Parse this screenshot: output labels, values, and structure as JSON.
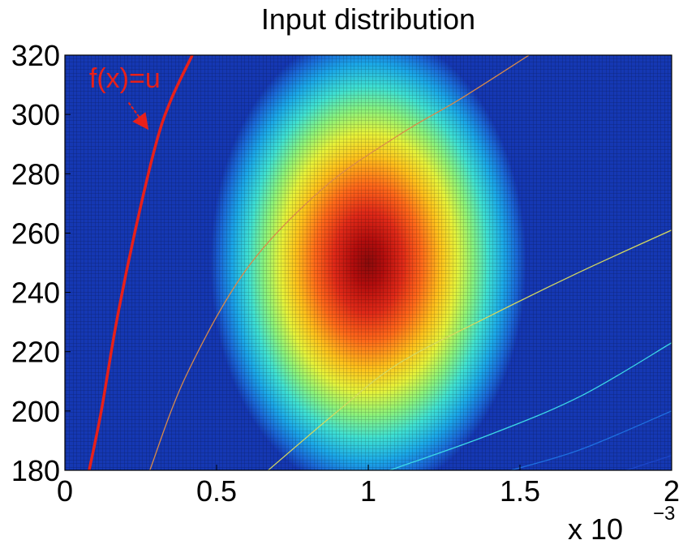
{
  "chart_data": {
    "type": "heatmap",
    "title": "Input distribution",
    "xlabel": "",
    "ylabel": "",
    "x_multiplier": "x 10",
    "x_multiplier_exponent": "−3",
    "xlim": [
      0,
      2
    ],
    "ylim": [
      180,
      320
    ],
    "x_ticks": [
      {
        "value": 0,
        "label": "0"
      },
      {
        "value": 0.5,
        "label": "0.5"
      },
      {
        "value": 1,
        "label": "1"
      },
      {
        "value": 1.5,
        "label": "1.5"
      },
      {
        "value": 2,
        "label": "2"
      }
    ],
    "y_ticks": [
      {
        "value": 180,
        "label": "180"
      },
      {
        "value": 200,
        "label": "200"
      },
      {
        "value": 220,
        "label": "220"
      },
      {
        "value": 240,
        "label": "240"
      },
      {
        "value": 260,
        "label": "260"
      },
      {
        "value": 280,
        "label": "280"
      },
      {
        "value": 300,
        "label": "300"
      },
      {
        "value": 320,
        "label": "320"
      }
    ],
    "colormap": "jet",
    "grid": "dense mesh",
    "distribution": {
      "kind": "gaussian",
      "center_x": 1.0,
      "center_y": 250,
      "sigma_x": 0.2,
      "sigma_y": 30
    },
    "contours": [
      {
        "color": "#e8201a",
        "width": 3.5,
        "points": [
          [
            0.08,
            180
          ],
          [
            0.12,
            200
          ],
          [
            0.17,
            230
          ],
          [
            0.23,
            260
          ],
          [
            0.3,
            290
          ],
          [
            0.35,
            305
          ],
          [
            0.42,
            320
          ]
        ]
      },
      {
        "color": "#d98a4a",
        "width": 1.3,
        "points": [
          [
            0.28,
            180
          ],
          [
            0.4,
            212
          ],
          [
            0.6,
            248
          ],
          [
            0.85,
            275
          ],
          [
            1.1,
            293
          ],
          [
            1.3,
            305
          ],
          [
            1.53,
            320
          ]
        ]
      },
      {
        "color": "#d4d860",
        "width": 1.3,
        "points": [
          [
            0.67,
            180
          ],
          [
            0.9,
            200
          ],
          [
            1.1,
            216
          ],
          [
            1.4,
            232
          ],
          [
            1.7,
            247
          ],
          [
            2.0,
            261
          ]
        ]
      },
      {
        "color": "#3cd8e6",
        "width": 1.3,
        "points": [
          [
            1.07,
            180
          ],
          [
            1.4,
            192
          ],
          [
            1.7,
            205
          ],
          [
            2.0,
            223
          ]
        ]
      },
      {
        "color": "#1e6fe0",
        "width": 1.3,
        "points": [
          [
            1.47,
            180
          ],
          [
            1.7,
            187
          ],
          [
            2.0,
            200
          ]
        ]
      },
      {
        "color": "#1a46c8",
        "width": 1.3,
        "points": [
          [
            1.85,
            180
          ],
          [
            2.0,
            185
          ]
        ]
      }
    ],
    "annotation": {
      "text": "f(x)=u",
      "x": 0.08,
      "y": 309,
      "arrow_from": [
        0.21,
        304
      ],
      "arrow_to": [
        0.26,
        297
      ]
    }
  }
}
